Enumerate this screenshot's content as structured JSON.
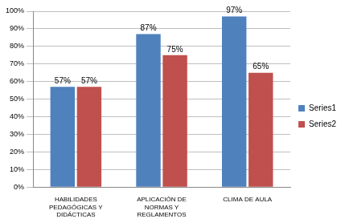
{
  "chart_data": {
    "type": "bar",
    "categories": [
      "HABILIDADES PEDAGÓGICAS Y DIDÁCTICAS",
      "APLICACIÓN DE NORMAS Y REGLAMENTOS",
      "CLIMA DE AULA"
    ],
    "series": [
      {
        "name": "Series1",
        "color": "#4f81bd",
        "values": [
          57,
          87,
          97
        ],
        "value_labels": [
          "57%",
          "87%",
          "97%"
        ]
      },
      {
        "name": "Series2",
        "color": "#c0504d",
        "values": [
          57,
          75,
          65
        ],
        "value_labels": [
          "57%",
          "75%",
          "65%"
        ]
      }
    ],
    "ylim": [
      0,
      100
    ],
    "yticks": [
      {
        "value": 0,
        "label": "0%"
      },
      {
        "value": 10,
        "label": "10%"
      },
      {
        "value": 20,
        "label": "20%"
      },
      {
        "value": 30,
        "label": "30%"
      },
      {
        "value": 40,
        "label": "40%"
      },
      {
        "value": 50,
        "label": "50%"
      },
      {
        "value": 60,
        "label": "60%"
      },
      {
        "value": 70,
        "label": "70%"
      },
      {
        "value": 80,
        "label": "80%"
      },
      {
        "value": 90,
        "label": "90%"
      },
      {
        "value": 100,
        "label": "100%"
      }
    ],
    "grid": true,
    "legend": "right",
    "data_labels": true
  }
}
